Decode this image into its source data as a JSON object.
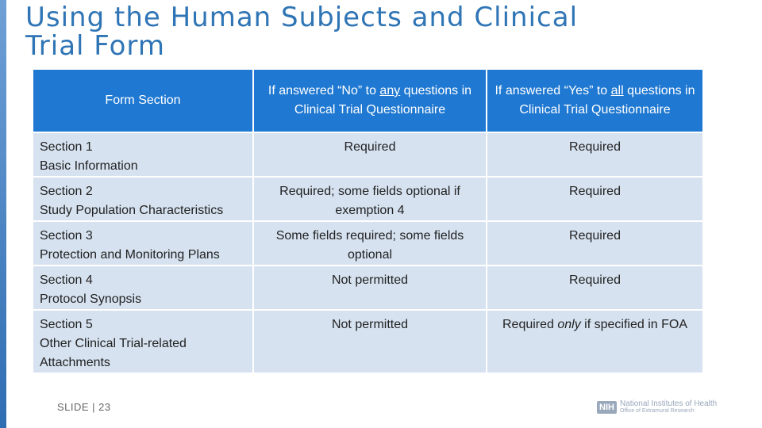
{
  "slide": {
    "title": "Using the Human Subjects and Clinical Trial Form",
    "footer": "SLIDE | 23",
    "logo": {
      "mark": "NIH",
      "line1": "National Institutes of Health",
      "line2": "Office of Extramural Research"
    }
  },
  "table": {
    "headers": {
      "col1": "Form Section",
      "col2_pre": "If answered “No” to ",
      "col2_emph": "any",
      "col2_post": " questions in Clinical Trial Questionnaire",
      "col3_pre": "If answered “Yes” to ",
      "col3_emph": "all",
      "col3_post": " questions in Clinical Trial Questionnaire"
    },
    "rows": [
      {
        "section": "Section 1",
        "name": "Basic Information",
        "no": "Required",
        "yes": "Required"
      },
      {
        "section": "Section 2",
        "name": "Study Population Characteristics",
        "no": "Required; some fields optional if exemption 4",
        "yes": "Required"
      },
      {
        "section": "Section 3",
        "name": "Protection and Monitoring Plans",
        "no": "Some fields required; some fields optional",
        "yes": "Required"
      },
      {
        "section": "Section 4",
        "name": "Protocol Synopsis",
        "no": "Not permitted",
        "yes": "Required"
      },
      {
        "section": "Section 5",
        "name": "Other Clinical Trial-related Attachments",
        "no": "Not permitted",
        "yes_pre": "Required ",
        "yes_emph": "only",
        "yes_post": " if specified in FOA"
      }
    ]
  },
  "colors": {
    "accent": "#2f75b5",
    "header_bg": "#1f78d1",
    "row_bg": "#d6e2f0"
  }
}
